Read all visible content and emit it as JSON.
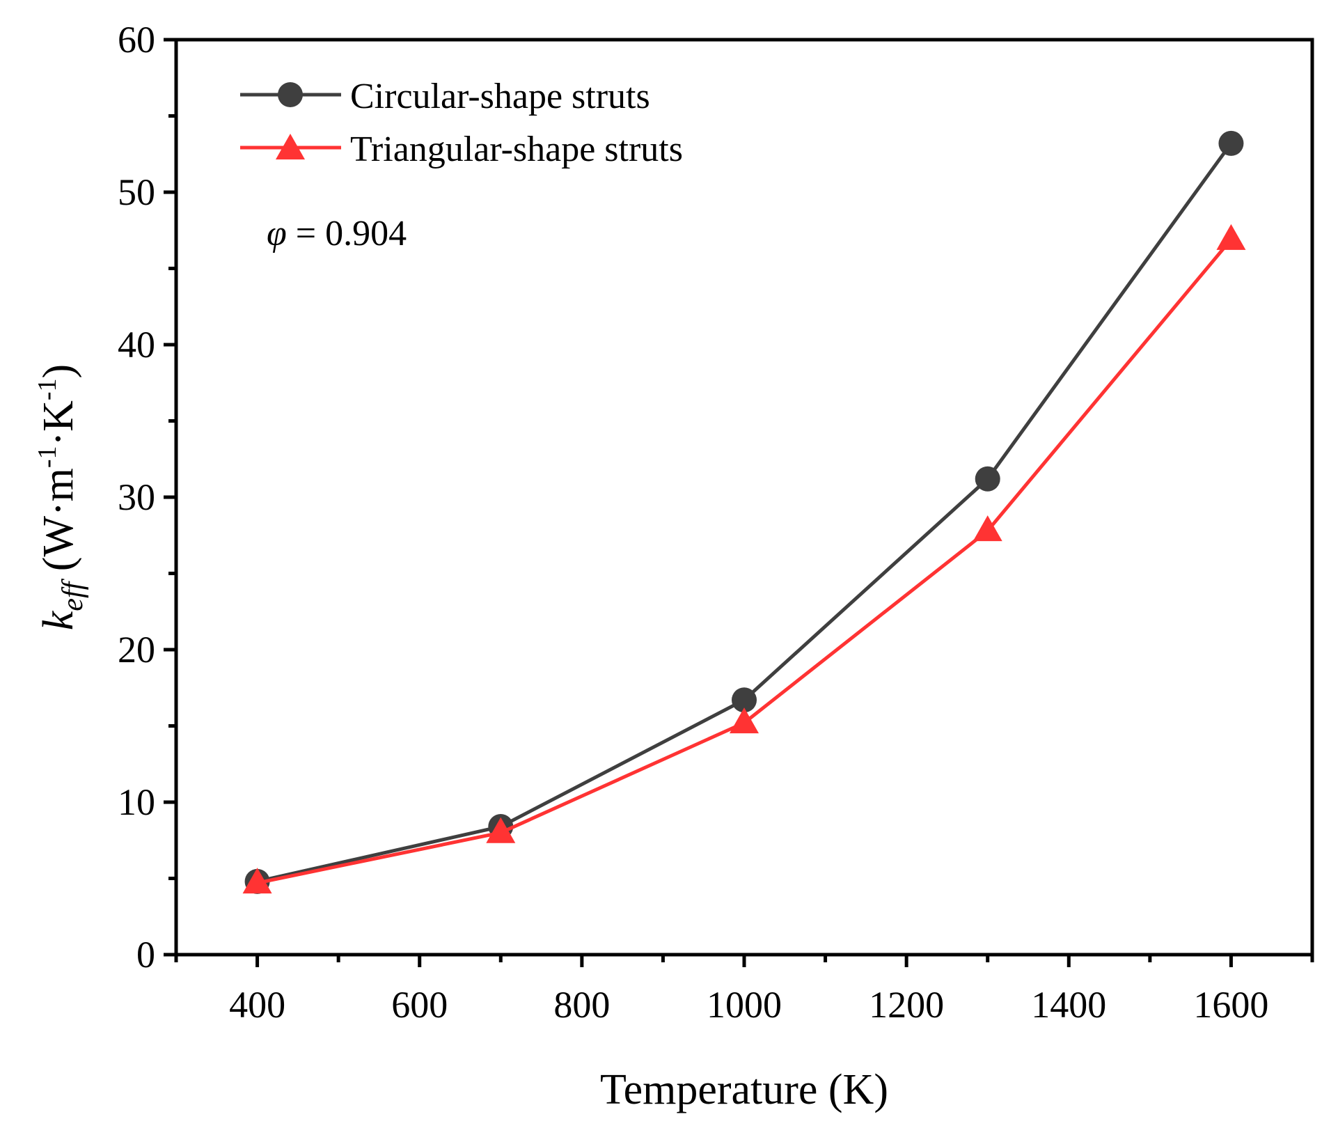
{
  "chart_data": {
    "type": "line",
    "xlabel": "Temperature (K)",
    "ylabel": {
      "symbol": "k",
      "subscript": "eff",
      "open": " (W·m",
      "exp1": "-1",
      "middle": "·K",
      "exp2": "-1",
      "close": ")"
    },
    "xlim": [
      300,
      1700
    ],
    "ylim": [
      0,
      60
    ],
    "x_ticks": [
      400,
      600,
      800,
      1000,
      1200,
      1400,
      1600
    ],
    "y_ticks": [
      0,
      10,
      20,
      30,
      40,
      50,
      60
    ],
    "x_minor_ticks": [
      300,
      500,
      700,
      900,
      1100,
      1300,
      1500,
      1700
    ],
    "y_minor_ticks": [
      5,
      15,
      25,
      35,
      45,
      55
    ],
    "grid": false,
    "legend_position": "top-left",
    "series": [
      {
        "name": "Circular-shape struts",
        "marker": "circle",
        "color": "#3f3f3f",
        "x": [
          400,
          700,
          1000,
          1300,
          1600
        ],
        "y": [
          4.8,
          8.4,
          16.7,
          31.2,
          53.2
        ]
      },
      {
        "name": "Triangular-shape struts",
        "marker": "triangle",
        "color": "#ff3333",
        "x": [
          400,
          700,
          1000,
          1300,
          1600
        ],
        "y": [
          4.7,
          8.0,
          15.2,
          27.8,
          46.9
        ]
      }
    ],
    "annotations": [
      {
        "symbol": "φ",
        "text": " = 0.904"
      }
    ]
  }
}
